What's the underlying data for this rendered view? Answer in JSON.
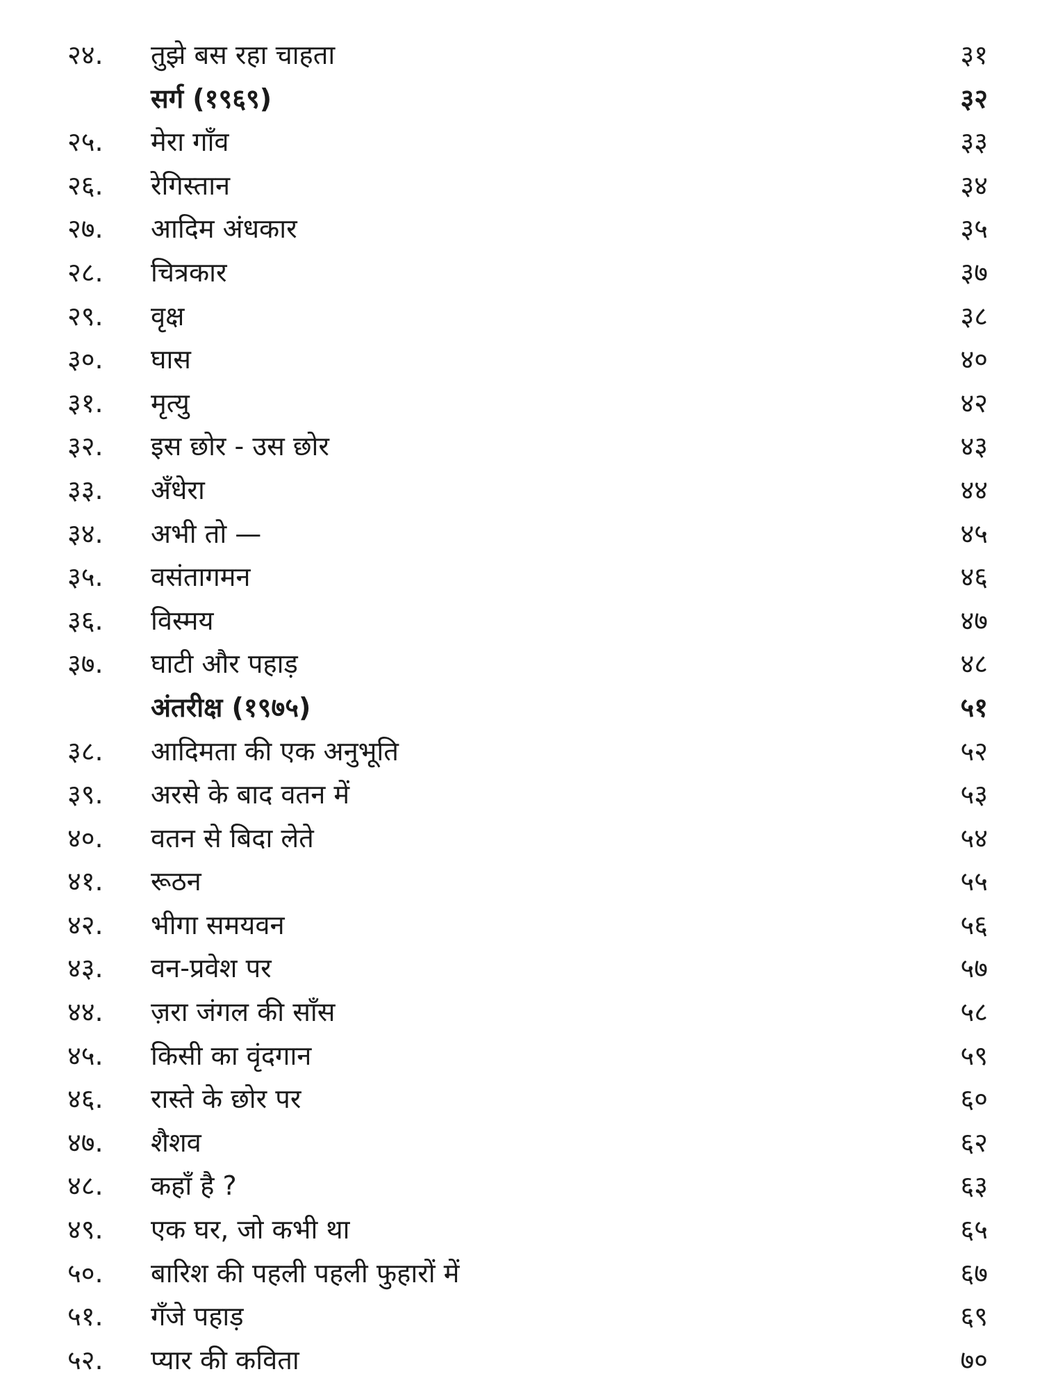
{
  "toc": {
    "rows": [
      {
        "type": "entry",
        "num": "२४.",
        "title": "तुझे बस रहा चाहता",
        "page": "३१"
      },
      {
        "type": "section",
        "num": "",
        "title": "सर्ग (१९६९)",
        "page": "३२"
      },
      {
        "type": "entry",
        "num": "२५.",
        "title": "मेरा गाँव",
        "page": "३३"
      },
      {
        "type": "entry",
        "num": "२६.",
        "title": "रेगिस्तान",
        "page": "३४"
      },
      {
        "type": "entry",
        "num": "२७.",
        "title": "आदिम अंधकार",
        "page": "३५"
      },
      {
        "type": "entry",
        "num": "२८.",
        "title": "चित्रकार",
        "page": "३७"
      },
      {
        "type": "entry",
        "num": "२९.",
        "title": "वृक्ष",
        "page": "३८"
      },
      {
        "type": "entry",
        "num": "३०.",
        "title": "घास",
        "page": "४०"
      },
      {
        "type": "entry",
        "num": "३१.",
        "title": "मृत्यु",
        "page": "४२"
      },
      {
        "type": "entry",
        "num": "३२.",
        "title": "इस छोर - उस छोर",
        "page": "४३"
      },
      {
        "type": "entry",
        "num": "३३.",
        "title": "अँधेरा",
        "page": "४४"
      },
      {
        "type": "entry",
        "num": "३४.",
        "title": "अभी तो —",
        "page": "४५"
      },
      {
        "type": "entry",
        "num": "३५.",
        "title": "वसंतागमन",
        "page": "४६"
      },
      {
        "type": "entry",
        "num": "३६.",
        "title": "विस्मय",
        "page": "४७"
      },
      {
        "type": "entry",
        "num": "३७.",
        "title": "घाटी और पहाड़",
        "page": "४८"
      },
      {
        "type": "section",
        "num": "",
        "title": "अंतरीक्ष (१९७५)",
        "page": "५१"
      },
      {
        "type": "entry",
        "num": "३८.",
        "title": "आदिमता की एक अनुभूति",
        "page": "५२"
      },
      {
        "type": "entry",
        "num": "३९.",
        "title": "अरसे के बाद वतन में",
        "page": "५३"
      },
      {
        "type": "entry",
        "num": "४०.",
        "title": "वतन से बिदा लेते",
        "page": "५४"
      },
      {
        "type": "entry",
        "num": "४१.",
        "title": "रूठन",
        "page": "५५"
      },
      {
        "type": "entry",
        "num": "४२.",
        "title": "भीगा समयवन",
        "page": "५६"
      },
      {
        "type": "entry",
        "num": "४३.",
        "title": "वन-प्रवेश पर",
        "page": "५७"
      },
      {
        "type": "entry",
        "num": "४४.",
        "title": "ज़रा जंगल की साँस",
        "page": "५८"
      },
      {
        "type": "entry",
        "num": "४५.",
        "title": "किसी का वृंदगान",
        "page": "५९"
      },
      {
        "type": "entry",
        "num": "४६.",
        "title": "रास्ते के छोर पर",
        "page": "६०"
      },
      {
        "type": "entry",
        "num": "४७.",
        "title": "शैशव",
        "page": "६२"
      },
      {
        "type": "entry",
        "num": "४८.",
        "title": "कहाँ है ?",
        "page": "६३"
      },
      {
        "type": "entry",
        "num": "४९.",
        "title": "एक घर, जो कभी था",
        "page": "६५"
      },
      {
        "type": "entry",
        "num": "५०.",
        "title": "बारिश की पहली पहली फुहारों में",
        "page": "६७"
      },
      {
        "type": "entry",
        "num": "५१.",
        "title": "गँजे पहाड़",
        "page": "६९"
      },
      {
        "type": "entry",
        "num": "५२.",
        "title": "प्यार की कविता",
        "page": "७०"
      }
    ]
  }
}
